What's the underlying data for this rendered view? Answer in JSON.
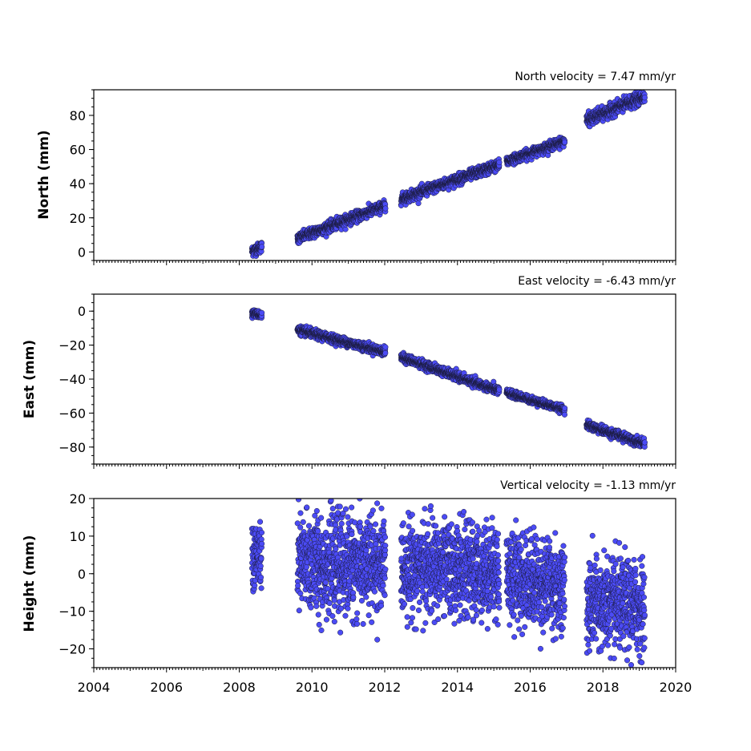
{
  "chart_data": [
    {
      "type": "scatter",
      "title": "North velocity = 7.47 mm/yr",
      "ylabel": "North (mm)",
      "xlabel": "",
      "xlim": [
        2004,
        2020
      ],
      "ylim": [
        -5,
        95
      ],
      "yticks": [
        0,
        20,
        40,
        60,
        80
      ],
      "color": "#4b4bf5",
      "grid": false,
      "segments": [
        {
          "start": 2008.35,
          "end": 2008.62,
          "v0": 0.5,
          "v1": 3.0,
          "noise": 1.5
        },
        {
          "start": 2009.6,
          "end": 2012.02,
          "v0": 8.0,
          "v1": 27.0,
          "noise": 1.5
        },
        {
          "start": 2012.45,
          "end": 2015.15,
          "v0": 31.0,
          "v1": 51.0,
          "noise": 1.5
        },
        {
          "start": 2015.35,
          "end": 2016.95,
          "v0": 53.0,
          "v1": 65.0,
          "noise": 1.3
        },
        {
          "start": 2017.55,
          "end": 2019.15,
          "v0": 77.0,
          "v1": 91.0,
          "noise": 1.8
        }
      ]
    },
    {
      "type": "scatter",
      "title": "East velocity = -6.43 mm/yr",
      "ylabel": "East (mm)",
      "xlabel": "",
      "xlim": [
        2004,
        2020
      ],
      "ylim": [
        -90,
        10
      ],
      "yticks": [
        0,
        -20,
        -40,
        -60,
        -80
      ],
      "color": "#4b4bf5",
      "grid": false,
      "segments": [
        {
          "start": 2008.35,
          "end": 2008.62,
          "v0": -1.0,
          "v1": -2.5,
          "noise": 1.0
        },
        {
          "start": 2009.6,
          "end": 2012.02,
          "v0": -11.0,
          "v1": -24.0,
          "noise": 1.2
        },
        {
          "start": 2012.45,
          "end": 2015.15,
          "v0": -27.0,
          "v1": -47.0,
          "noise": 1.2
        },
        {
          "start": 2015.35,
          "end": 2016.95,
          "v0": -48.0,
          "v1": -58.0,
          "noise": 1.0
        },
        {
          "start": 2017.55,
          "end": 2019.15,
          "v0": -67.0,
          "v1": -78.0,
          "noise": 1.2
        }
      ]
    },
    {
      "type": "scatter",
      "title": "Vertical velocity = -1.13 mm/yr",
      "ylabel": "Height (mm)",
      "xlabel": "",
      "xlim": [
        2004,
        2020
      ],
      "ylim": [
        -25,
        20
      ],
      "yticks": [
        20,
        10,
        0,
        -10,
        -20
      ],
      "xticks": [
        "2004",
        "2006",
        "2008",
        "2010",
        "2012",
        "2014",
        "2016",
        "2018",
        "2020"
      ],
      "color": "#4b4bf5",
      "grid": false,
      "segments": [
        {
          "start": 2008.35,
          "end": 2008.62,
          "v0": 4.0,
          "v1": 5.0,
          "noise": 5.0
        },
        {
          "start": 2009.6,
          "end": 2012.02,
          "v0": 3.0,
          "v1": 2.0,
          "noise": 6.5
        },
        {
          "start": 2012.45,
          "end": 2015.15,
          "v0": 2.0,
          "v1": 0.5,
          "noise": 6.0
        },
        {
          "start": 2015.35,
          "end": 2016.95,
          "v0": 0.0,
          "v1": -4.0,
          "noise": 6.0
        },
        {
          "start": 2017.55,
          "end": 2019.15,
          "v0": -8.0,
          "v1": -9.0,
          "noise": 6.0
        }
      ]
    }
  ]
}
